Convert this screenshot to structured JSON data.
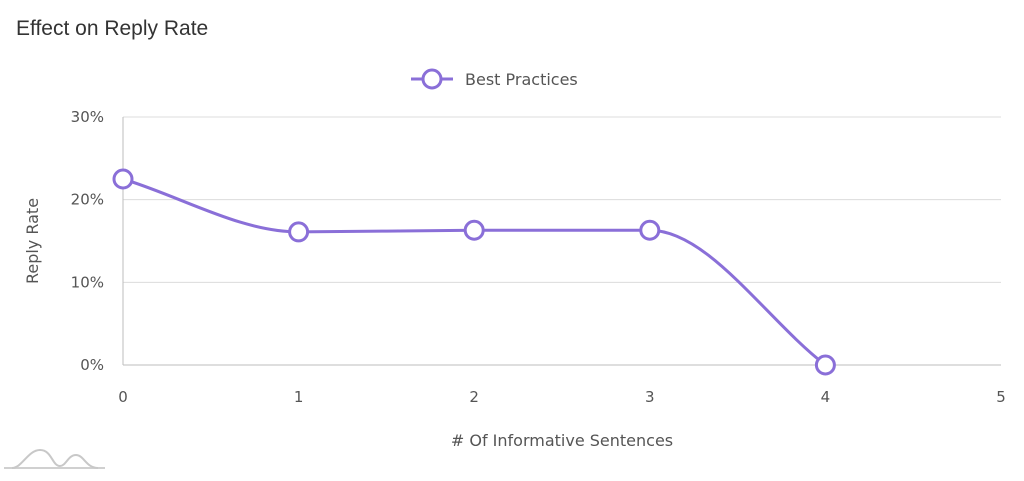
{
  "page_title": "Effect on Reply Rate",
  "chart_data": {
    "type": "line",
    "title": "Effect on Reply Rate",
    "xlabel": "# Of Informative Sentences",
    "ylabel": "Reply Rate",
    "x_ticks": [
      "0",
      "1",
      "2",
      "3",
      "4",
      "5"
    ],
    "y_ticks": [
      "0%",
      "10%",
      "20%",
      "30%"
    ],
    "xlim": [
      0,
      5
    ],
    "ylim": [
      0,
      30
    ],
    "grid": "horizontal",
    "legend_position": "top-center",
    "series": [
      {
        "name": "Best Practices",
        "color": "#8a6fd8",
        "x": [
          0,
          1,
          2,
          3,
          4
        ],
        "y": [
          22.5,
          16.1,
          16.3,
          16.3,
          0
        ]
      }
    ]
  },
  "watermark_icon": "mountain-logo-icon"
}
